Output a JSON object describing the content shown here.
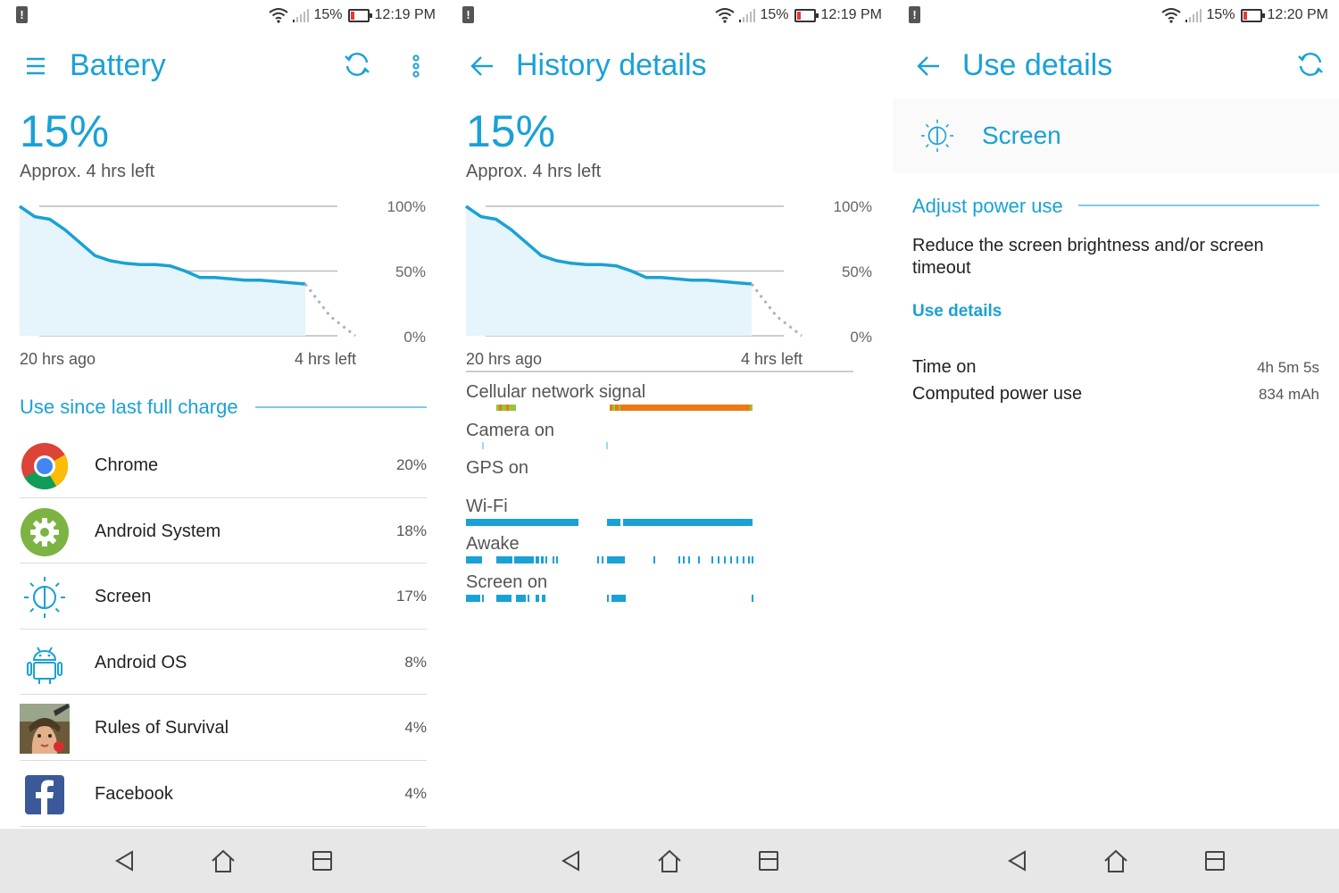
{
  "status": [
    {
      "battery_pct": "15%",
      "time": "12:19 PM"
    },
    {
      "battery_pct": "15%",
      "time": "12:19 PM"
    },
    {
      "battery_pct": "15%",
      "time": "12:20 PM"
    }
  ],
  "colors": {
    "accent": "#1aa1d6",
    "line": "#1aa1d6",
    "orange": "#ea7a16"
  },
  "battery": {
    "title": "Battery",
    "percent": "15%",
    "approx": "Approx. 4 hrs left",
    "chart": {
      "y_labels": [
        "100%",
        "50%",
        "0%"
      ],
      "x_start": "20 hrs ago",
      "x_end": "4 hrs left"
    },
    "section": "Use since last full charge",
    "apps": [
      {
        "name": "Chrome",
        "percent": "20%",
        "icon": "chrome-icon"
      },
      {
        "name": "Android System",
        "percent": "18%",
        "icon": "android-system-gear-icon"
      },
      {
        "name": "Screen",
        "percent": "17%",
        "icon": "screen-brightness-icon"
      },
      {
        "name": "Android OS",
        "percent": "8%",
        "icon": "android-robot-icon"
      },
      {
        "name": "Rules of Survival",
        "percent": "4%",
        "icon": "rules-of-survival-icon"
      },
      {
        "name": "Facebook",
        "percent": "4%",
        "icon": "facebook-icon"
      }
    ]
  },
  "history": {
    "title": "History details",
    "percent": "15%",
    "approx": "Approx. 4 hrs left",
    "chart": {
      "y_labels": [
        "100%",
        "50%",
        "0%"
      ],
      "x_start": "20 hrs ago",
      "x_end": "4 hrs left"
    },
    "items": [
      {
        "label": "Cellular network signal"
      },
      {
        "label": "Camera on"
      },
      {
        "label": "GPS on"
      },
      {
        "label": "Wi-Fi"
      },
      {
        "label": "Awake"
      },
      {
        "label": "Screen on"
      }
    ]
  },
  "use": {
    "title": "Use details",
    "item": "Screen",
    "section": "Adjust power use",
    "advice": "Reduce the screen brightness and/or screen timeout",
    "link": "Use details",
    "rows": [
      {
        "label": "Time on",
        "value": "4h 5m 5s"
      },
      {
        "label": "Computed power use",
        "value": "834 mAh"
      }
    ]
  },
  "chart_data": {
    "type": "line",
    "title": "",
    "xlabel": "",
    "ylabel": "",
    "ylim": [
      0,
      100
    ],
    "x_range": [
      "20 hrs ago",
      "4 hrs left"
    ],
    "series": [
      {
        "values": [
          100,
          92,
          90,
          82,
          72,
          62,
          58,
          56,
          55,
          55,
          54,
          50,
          45,
          45,
          44,
          43,
          43,
          42,
          41,
          40
        ]
      }
    ],
    "projection": [
      40,
      15,
      0
    ]
  }
}
